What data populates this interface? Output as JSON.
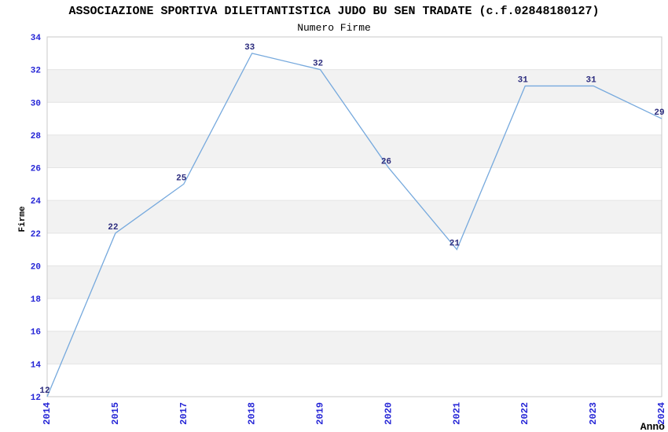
{
  "title": "ASSOCIAZIONE SPORTIVA DILETTANTISTICA JUDO BU SEN TRADATE (c.f.02848180127)",
  "subtitle": "Numero Firme",
  "chart_data": {
    "type": "line",
    "title": "Numero Firme",
    "x": [
      "2014",
      "2015",
      "2017",
      "2018",
      "2019",
      "2020",
      "2021",
      "2022",
      "2023",
      "2024"
    ],
    "values": [
      12,
      22,
      25,
      33,
      32,
      26,
      21,
      31,
      31,
      29
    ],
    "xlabel": "Anno",
    "ylabel": "Firme",
    "ylim": [
      12,
      34
    ],
    "ytick_step": 2,
    "legend": "none",
    "grid": "horizontal-bands-alternating",
    "point_labels_visible": true,
    "colors": {
      "line": "#76a9dd",
      "tick_label": "#2525d6",
      "point_label": "#2c2c7e",
      "band_gray": "#f2f2f2",
      "band_white": "#ffffff",
      "gridline": "#e4e4e4",
      "border": "#c9c9c9",
      "axis_title": "#000000"
    }
  }
}
